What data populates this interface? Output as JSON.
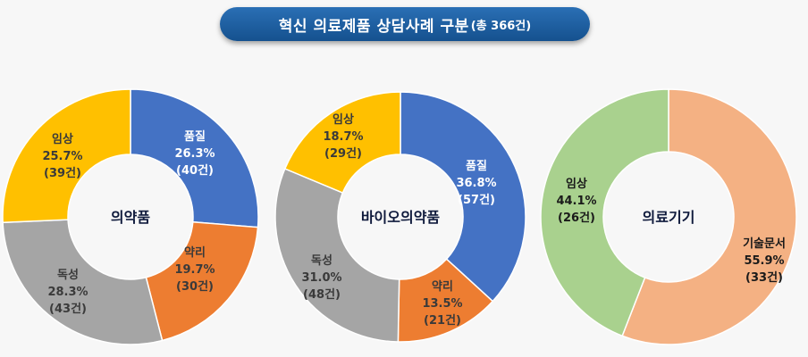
{
  "title": {
    "main": "혁신 의료제품 상담사례 구분",
    "sub": "(총 366건)"
  },
  "colors": {
    "quality": "#4472c4",
    "pharm": "#ed7d31",
    "tox": "#a5a5a5",
    "clinical": "#ffc000",
    "clinical_device": "#a9d18e",
    "techdoc": "#f4b183"
  },
  "chart_data": [
    {
      "type": "pie",
      "title": "의약품",
      "slices": [
        {
          "name": "품질",
          "value": 26.3,
          "count_label": "(40건)",
          "pct_label": "26.3%",
          "color": "#4472c4",
          "text_color": "#ffffff"
        },
        {
          "name": "약리",
          "value": 19.7,
          "count_label": "(30건)",
          "pct_label": "19.7%",
          "color": "#ed7d31",
          "text_color": "#3a3a3a"
        },
        {
          "name": "독성",
          "value": 28.3,
          "count_label": "(43건)",
          "pct_label": "28.3%",
          "color": "#a5a5a5",
          "text_color": "#3a3a3a"
        },
        {
          "name": "임상",
          "value": 25.7,
          "count_label": "(39건)",
          "pct_label": "25.7%",
          "color": "#ffc000",
          "text_color": "#3a3a3a"
        }
      ]
    },
    {
      "type": "pie",
      "title": "바이오의약품",
      "slices": [
        {
          "name": "품질",
          "value": 36.8,
          "count_label": "(57건)",
          "pct_label": "36.8%",
          "color": "#4472c4",
          "text_color": "#ffffff"
        },
        {
          "name": "약리",
          "value": 13.5,
          "count_label": "(21건)",
          "pct_label": "13.5%",
          "color": "#ed7d31",
          "text_color": "#3a3a3a"
        },
        {
          "name": "독성",
          "value": 31.0,
          "count_label": "(48건)",
          "pct_label": "31.0%",
          "color": "#a5a5a5",
          "text_color": "#3a3a3a"
        },
        {
          "name": "임상",
          "value": 18.7,
          "count_label": "(29건)",
          "pct_label": "18.7%",
          "color": "#ffc000",
          "text_color": "#3a3a3a"
        }
      ]
    },
    {
      "type": "pie",
      "title": "의료기기",
      "slices": [
        {
          "name": "기술문서",
          "value": 55.9,
          "count_label": "(33건)",
          "pct_label": "55.9%",
          "color": "#f4b183",
          "text_color": "#1a1a1a"
        },
        {
          "name": "임상",
          "value": 44.1,
          "count_label": "(26건)",
          "pct_label": "44.1%",
          "color": "#a9d18e",
          "text_color": "#1a1a1a"
        }
      ]
    }
  ]
}
